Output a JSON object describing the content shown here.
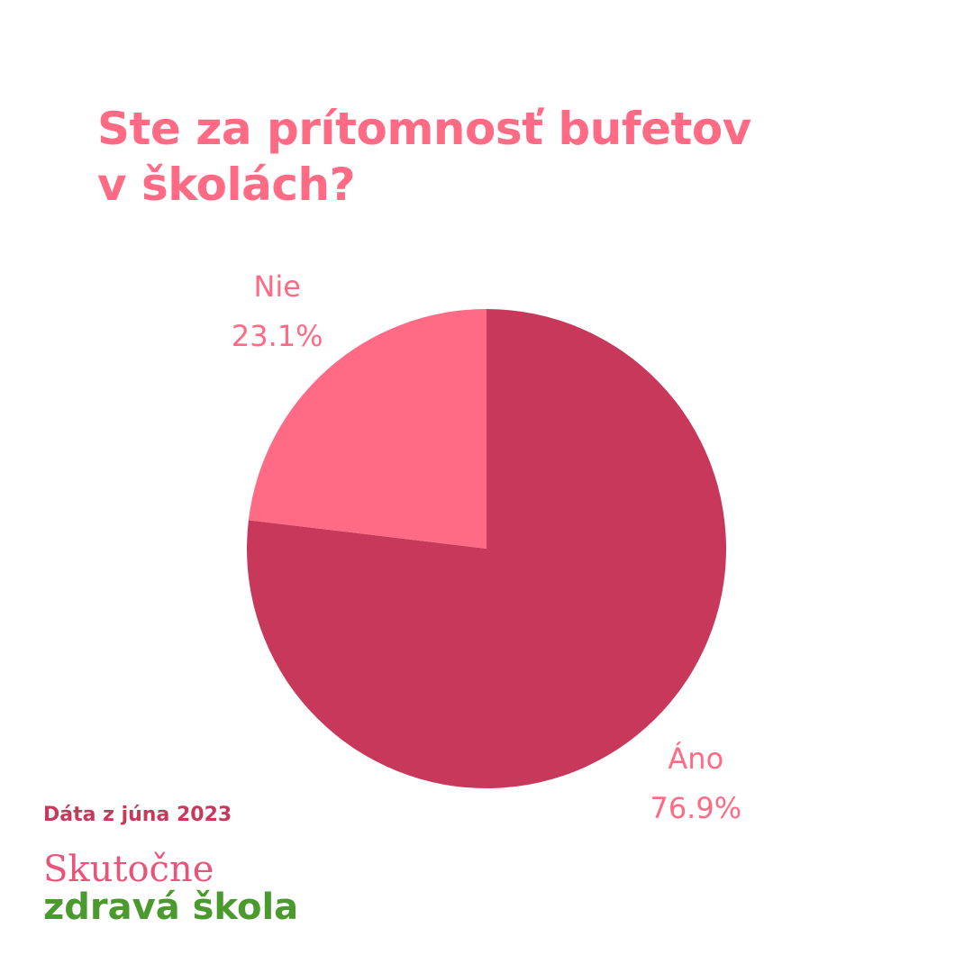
{
  "chart_data": {
    "type": "pie",
    "title": "Ste za prítomnosť bufetov\nv školách?",
    "categories": [
      "Áno",
      "Nie"
    ],
    "values": [
      76.9,
      23.1
    ],
    "value_labels": [
      "76.9%",
      "23.1%"
    ],
    "colors": [
      "#c8385a",
      "#ff6b85"
    ],
    "source": "Dáta z júna 2023",
    "brand": [
      "Skutočne",
      "zdravá škola"
    ]
  }
}
